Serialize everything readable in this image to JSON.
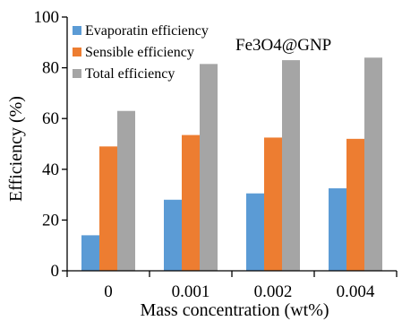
{
  "chart_data": {
    "type": "bar",
    "categories": [
      "0",
      "0.001",
      "0.002",
      "0.004"
    ],
    "series": [
      {
        "name": "Evaporatin efficiency",
        "values": [
          14,
          28,
          30.5,
          32.5
        ],
        "color": "#5B9BD5"
      },
      {
        "name": "Sensible efficiency",
        "values": [
          49,
          53.5,
          52.5,
          52
        ],
        "color": "#ED7D31"
      },
      {
        "name": "Total efficiency",
        "values": [
          63,
          81.5,
          83,
          84
        ],
        "color": "#A5A5A5"
      }
    ],
    "title": "",
    "annotation": "Fe3O4@GNP",
    "xlabel": "Mass concentration (wt%)",
    "ylabel": "Efficiency (%)",
    "ylim": [
      0,
      100
    ],
    "yticks": [
      "0",
      "20",
      "40",
      "60",
      "80",
      "100"
    ],
    "grid": false,
    "legend_position": "top-left"
  }
}
